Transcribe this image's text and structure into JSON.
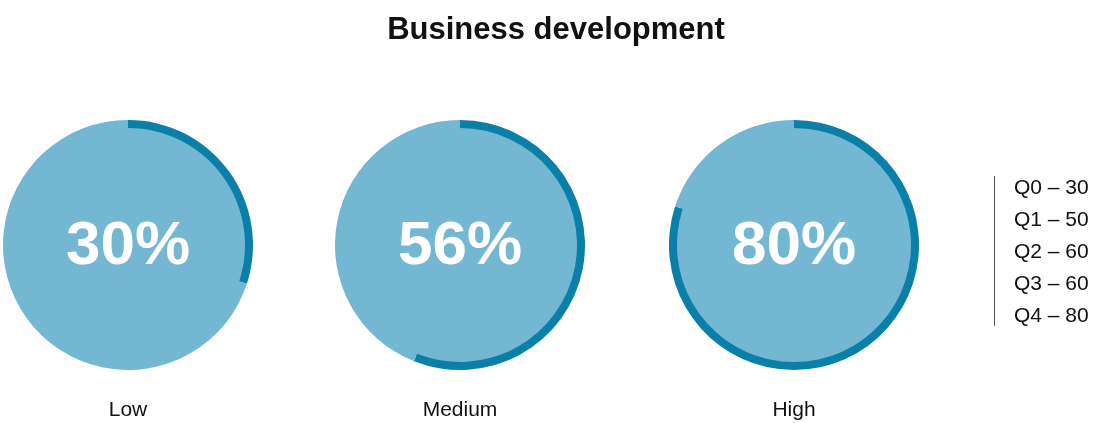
{
  "chart_data": [
    {
      "type": "other",
      "title": "Business development"
    },
    {
      "type": "donut",
      "title": "Low",
      "categories": [
        null,
        null
      ],
      "values": [
        30,
        70
      ],
      "colors": [
        "#0a7fa8",
        "#73b7d3"
      ],
      "value_labels": [
        "30%",
        null
      ]
    },
    {
      "type": "donut",
      "title": "Medium",
      "categories": [
        null,
        null
      ],
      "values": [
        56,
        44
      ],
      "colors": [
        "#0a7fa8",
        "#73b7d3"
      ],
      "value_labels": [
        "56%",
        null
      ]
    },
    {
      "type": "donut",
      "title": "High",
      "categories": [
        null,
        null
      ],
      "values": [
        80,
        20
      ],
      "colors": [
        "#0a7fa8",
        "#73b7d3"
      ],
      "value_labels": [
        "80%",
        null
      ]
    },
    {
      "type": "other",
      "annotations": [
        "Q0 – 30",
        "Q1 – 50",
        "Q2 – 60",
        "Q3 – 60",
        "Q4 – 80"
      ]
    }
  ]
}
